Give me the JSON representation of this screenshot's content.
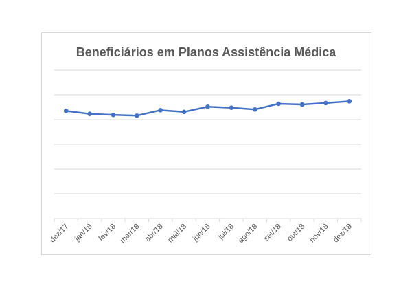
{
  "chart_data": {
    "type": "line",
    "title": "Beneficiários em Planos Assistência Médica",
    "categories": [
      "dez/17",
      "jan/18",
      "fev/18",
      "mar/18",
      "abr/18",
      "mai/18",
      "jun/18",
      "jul/18",
      "ago/18",
      "set/18",
      "out/18",
      "nov/18",
      "dez/18"
    ],
    "series": [
      {
        "values": [
          4.35,
          4.23,
          4.19,
          4.16,
          4.38,
          4.31,
          4.52,
          4.48,
          4.41,
          4.64,
          4.61,
          4.67,
          4.74
        ],
        "color": "#4472c4"
      }
    ],
    "ylim": [
      0,
      6
    ],
    "y_tick_labels_shown": false,
    "grid": true,
    "legend": "none",
    "xlabel": "",
    "ylabel": ""
  }
}
